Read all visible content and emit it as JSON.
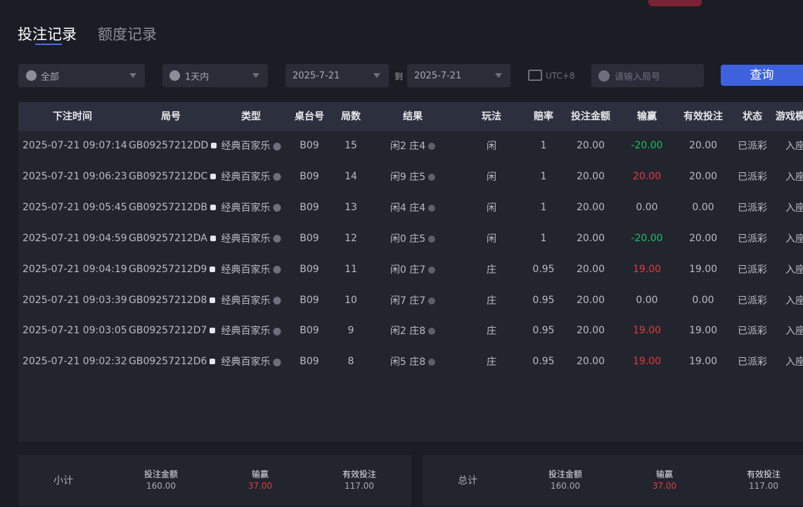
{
  "tabs": [
    "投注记录",
    "额度记录"
  ],
  "filters": {
    "type": "全部",
    "range": "1天内",
    "start_date": "2025-7-21",
    "to": "到",
    "end_date": "2025-7-21",
    "timezone": "UTC+8",
    "search_placeholder": "请输入局号",
    "query_button": "查询"
  },
  "table": {
    "headers": [
      "下注时间",
      "局号",
      "类型",
      "桌台号",
      "局数",
      "结果",
      "玩法",
      "赔率",
      "投注金额",
      "输赢",
      "有效投注",
      "状态",
      "游戏模"
    ],
    "rows": [
      [
        "2025-07-21 09:07:14",
        "GB09257212DD",
        "经典百家乐",
        "B09",
        "15",
        "闲2 庄4",
        "闲",
        "1",
        "20.00",
        "-20.00",
        "20.00",
        "已派彩",
        "入座"
      ],
      [
        "2025-07-21 09:06:23",
        "GB09257212DC",
        "经典百家乐",
        "B09",
        "14",
        "闲9 庄5",
        "闲",
        "1",
        "20.00",
        "20.00",
        "20.00",
        "已派彩",
        "入座"
      ],
      [
        "2025-07-21 09:05:45",
        "GB09257212DB",
        "经典百家乐",
        "B09",
        "13",
        "闲4 庄4",
        "闲",
        "1",
        "20.00",
        "0.00",
        "0.00",
        "已派彩",
        "入座"
      ],
      [
        "2025-07-21 09:04:59",
        "GB09257212DA",
        "经典百家乐",
        "B09",
        "12",
        "闲0 庄5",
        "闲",
        "1",
        "20.00",
        "-20.00",
        "20.00",
        "已派彩",
        "入座"
      ],
      [
        "2025-07-21 09:04:19",
        "GB09257212D9",
        "经典百家乐",
        "B09",
        "11",
        "闲0 庄7",
        "庄",
        "0.95",
        "20.00",
        "19.00",
        "19.00",
        "已派彩",
        "入座"
      ],
      [
        "2025-07-21 09:03:39",
        "GB09257212D8",
        "经典百家乐",
        "B09",
        "10",
        "闲7 庄7",
        "庄",
        "0.95",
        "20.00",
        "0.00",
        "0.00",
        "已派彩",
        "入座"
      ],
      [
        "2025-07-21 09:03:05",
        "GB09257212D7",
        "经典百家乐",
        "B09",
        "9",
        "闲2 庄8",
        "庄",
        "0.95",
        "20.00",
        "19.00",
        "19.00",
        "已派彩",
        "入座"
      ],
      [
        "2025-07-21 09:02:32",
        "GB09257212D6",
        "经典百家乐",
        "B09",
        "8",
        "闲5 庄8",
        "庄",
        "0.95",
        "20.00",
        "19.00",
        "19.00",
        "已派彩",
        "入座"
      ]
    ]
  },
  "summary": [
    {
      "label": "小计",
      "items": [
        {
          "label": "投注金额",
          "value": "160.00"
        },
        {
          "label": "输赢",
          "value": "37.00"
        },
        {
          "label": "有效投注",
          "value": "117.00"
        }
      ]
    },
    {
      "label": "总计",
      "items": [
        {
          "label": "投注金额",
          "value": "160.00"
        },
        {
          "label": "输赢",
          "value": "37.00"
        },
        {
          "label": "有效投注",
          "value": "117.00"
        }
      ]
    }
  ]
}
